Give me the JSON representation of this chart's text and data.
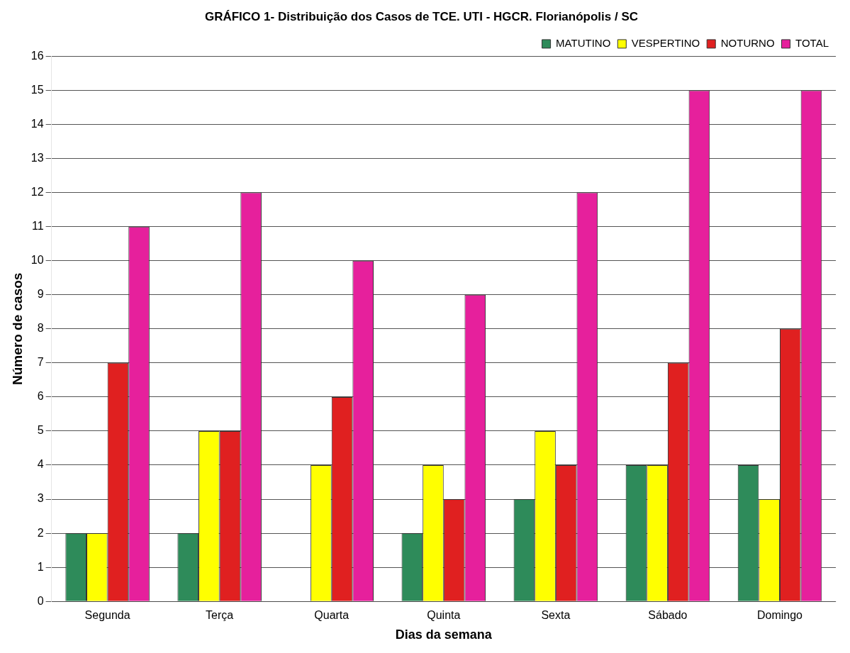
{
  "chart_data": {
    "type": "bar",
    "title": "GRÁFICO 1- Distribuição dos Casos de TCE. UTI - HGCR. Florianópolis / SC",
    "xlabel": "Dias da semana",
    "ylabel": "Número de casos",
    "categories": [
      "Segunda",
      "Terça",
      "Quarta",
      "Quinta",
      "Sexta",
      "Sábado",
      "Domingo"
    ],
    "series": [
      {
        "name": "MATUTINO",
        "color": "#2e8b5a",
        "values": [
          2,
          2,
          0,
          2,
          3,
          4,
          4
        ]
      },
      {
        "name": "VESPERTINO",
        "color": "#ffff00",
        "values": [
          2,
          5,
          4,
          4,
          5,
          4,
          3
        ]
      },
      {
        "name": "NOTURNO",
        "color": "#e02020",
        "values": [
          7,
          5,
          6,
          3,
          4,
          7,
          8
        ]
      },
      {
        "name": "TOTAL",
        "color": "#e6209c",
        "values": [
          11,
          12,
          10,
          9,
          12,
          15,
          15
        ]
      }
    ],
    "ylim": [
      0,
      16
    ],
    "yticks": [
      0,
      1,
      2,
      3,
      4,
      5,
      6,
      7,
      8,
      9,
      10,
      11,
      12,
      13,
      14,
      15,
      16
    ],
    "grid": "y",
    "legend": "top right"
  }
}
